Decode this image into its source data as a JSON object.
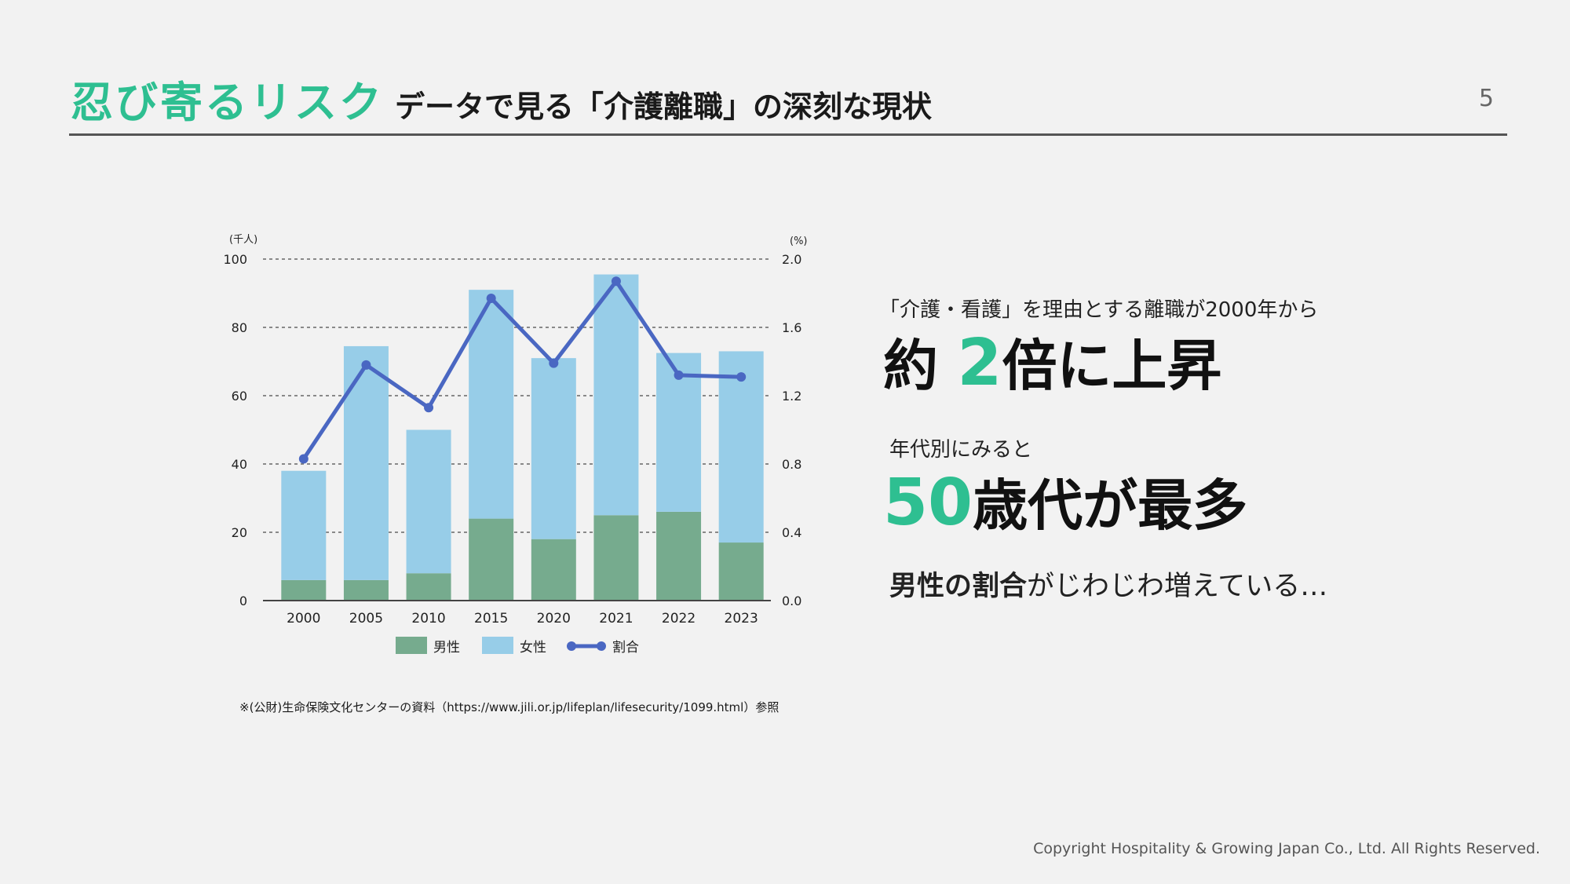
{
  "header": {
    "title_accent": "忍び寄るリスク",
    "title_main": "データで見る「介護離職」の深刻な現状",
    "page_number": "5"
  },
  "chart_data": {
    "type": "bar",
    "categories": [
      "2000",
      "2005",
      "2010",
      "2015",
      "2020",
      "2021",
      "2022",
      "2023"
    ],
    "series": [
      {
        "name": "男性",
        "type": "bar",
        "stacked": true,
        "axis": "left",
        "color": "#76ab8e",
        "values": [
          6,
          6,
          8,
          24,
          18,
          25,
          26,
          17
        ]
      },
      {
        "name": "女性",
        "type": "bar",
        "stacked": true,
        "axis": "left",
        "color": "#97cde8",
        "values": [
          32,
          68.5,
          42,
          67,
          53,
          70.5,
          46.5,
          56
        ]
      },
      {
        "name": "割合",
        "type": "line",
        "axis": "right",
        "color": "#4a67c2",
        "values": [
          0.83,
          1.38,
          1.13,
          1.77,
          1.39,
          1.87,
          1.32,
          1.31
        ]
      }
    ],
    "y_left": {
      "unit": "(千人)",
      "ylim": [
        0,
        100
      ],
      "ticks": [
        "0",
        "20",
        "40",
        "60",
        "80",
        "100"
      ]
    },
    "y_right": {
      "unit": "(%)",
      "ylim": [
        0,
        2.0
      ],
      "ticks": [
        "0.0",
        "0.4",
        "0.8",
        "1.2",
        "1.6",
        "2.0"
      ]
    },
    "grid": true,
    "legend_position": "bottom"
  },
  "source_note": "※(公財)生命保険文化センターの資料（https://www.jili.or.jp/lifeplan/lifesecurity/1099.html）参照",
  "points": {
    "lead1": "「介護・看護」を理由とする離職が2000年から",
    "big1_pre": "約",
    "big1_num": "2",
    "big1_post": "倍に上昇",
    "lead2": "年代別にみると",
    "big2_num": "50",
    "big2_post": "歳代が最多",
    "note_bold": "男性の割合",
    "note_rest": "がじわじわ増えている…"
  },
  "footer": {
    "copyright": "Copyright Hospitality & Growing Japan Co., Ltd. All Rights Reserved."
  },
  "colors": {
    "accent": "#2ebf91",
    "male_bar": "#76ab8e",
    "female_bar": "#97cde8",
    "ratio_line": "#4a67c2"
  }
}
